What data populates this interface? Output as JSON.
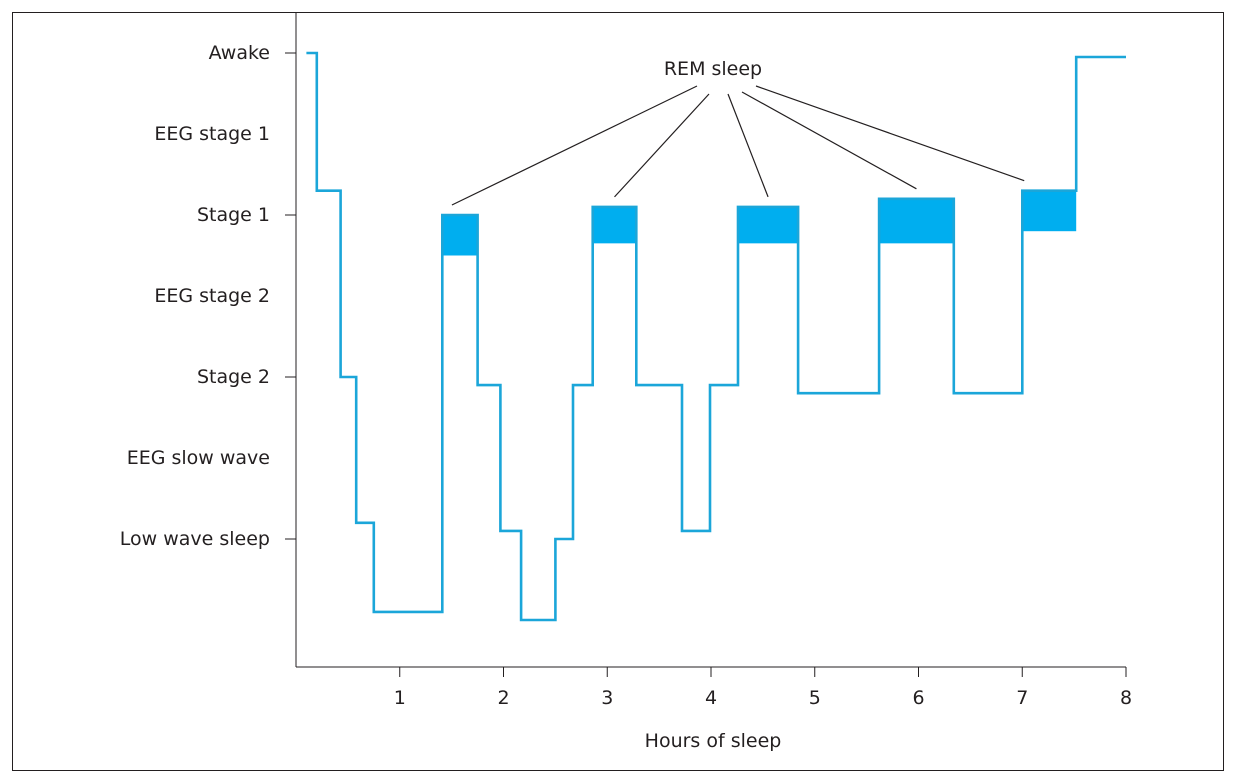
{
  "chart_data": {
    "type": "line",
    "title": "",
    "xlabel": "Hours of sleep",
    "ylabel": "",
    "xlim": [
      0,
      8
    ],
    "x_ticks": [
      1,
      2,
      3,
      4,
      5,
      6,
      7,
      8
    ],
    "y_levels": [
      {
        "label": "Awake",
        "level": 0,
        "tick": true
      },
      {
        "label": "EEG stage 1",
        "level": 1,
        "tick": false
      },
      {
        "label": "Stage 1",
        "level": 2,
        "tick": true
      },
      {
        "label": "EEG stage 2",
        "level": 3,
        "tick": false
      },
      {
        "label": "Stage 2",
        "level": 4,
        "tick": true
      },
      {
        "label": "EEG slow wave",
        "level": 5,
        "tick": false
      },
      {
        "label": "Low wave sleep",
        "level": 6,
        "tick": true
      }
    ],
    "ylim": [
      7.0,
      -0.1
    ],
    "series": [
      {
        "points": [
          [
            0.1,
            0.0
          ],
          [
            0.2,
            0.0
          ],
          [
            0.2,
            1.7
          ],
          [
            0.43,
            1.7
          ],
          [
            0.43,
            4.0
          ],
          [
            0.58,
            4.0
          ],
          [
            0.58,
            5.8
          ],
          [
            0.75,
            5.8
          ],
          [
            0.75,
            6.9
          ],
          [
            1.41,
            6.9
          ],
          [
            1.41,
            2.0
          ],
          [
            1.75,
            2.0
          ],
          [
            1.75,
            4.1
          ],
          [
            1.97,
            4.1
          ],
          [
            1.97,
            5.9
          ],
          [
            2.17,
            5.9
          ],
          [
            2.17,
            7.0
          ],
          [
            2.5,
            7.0
          ],
          [
            2.5,
            6.0
          ],
          [
            2.67,
            6.0
          ],
          [
            2.67,
            4.1
          ],
          [
            2.86,
            4.1
          ],
          [
            2.86,
            1.9
          ],
          [
            3.28,
            1.9
          ],
          [
            3.28,
            4.1
          ],
          [
            3.72,
            4.1
          ],
          [
            3.72,
            5.9
          ],
          [
            3.99,
            5.9
          ],
          [
            3.99,
            4.1
          ],
          [
            4.26,
            4.1
          ],
          [
            4.26,
            1.9
          ],
          [
            4.84,
            1.9
          ],
          [
            4.84,
            4.2
          ],
          [
            5.62,
            4.2
          ],
          [
            5.62,
            1.8
          ],
          [
            6.34,
            1.8
          ],
          [
            6.34,
            4.2
          ],
          [
            7.0,
            4.2
          ],
          [
            7.0,
            1.7
          ],
          [
            7.52,
            1.7
          ],
          [
            7.52,
            0.05
          ],
          [
            8.0,
            0.05
          ]
        ]
      }
    ],
    "rem_periods": [
      {
        "x": [
          1.41,
          1.75
        ],
        "y": [
          2.0,
          2.5
        ]
      },
      {
        "x": [
          2.86,
          3.28
        ],
        "y": [
          1.9,
          2.35
        ]
      },
      {
        "x": [
          4.26,
          4.84
        ],
        "y": [
          1.9,
          2.35
        ]
      },
      {
        "x": [
          5.62,
          6.34
        ],
        "y": [
          1.8,
          2.35
        ]
      },
      {
        "x": [
          7.0,
          7.52
        ],
        "y": [
          1.7,
          2.2
        ]
      }
    ],
    "annotation": {
      "text": "REM sleep"
    },
    "grid": false,
    "colors": {
      "line": "#1ba6d9",
      "rem_fill": "#00aeef",
      "axis": "#231f20"
    }
  }
}
